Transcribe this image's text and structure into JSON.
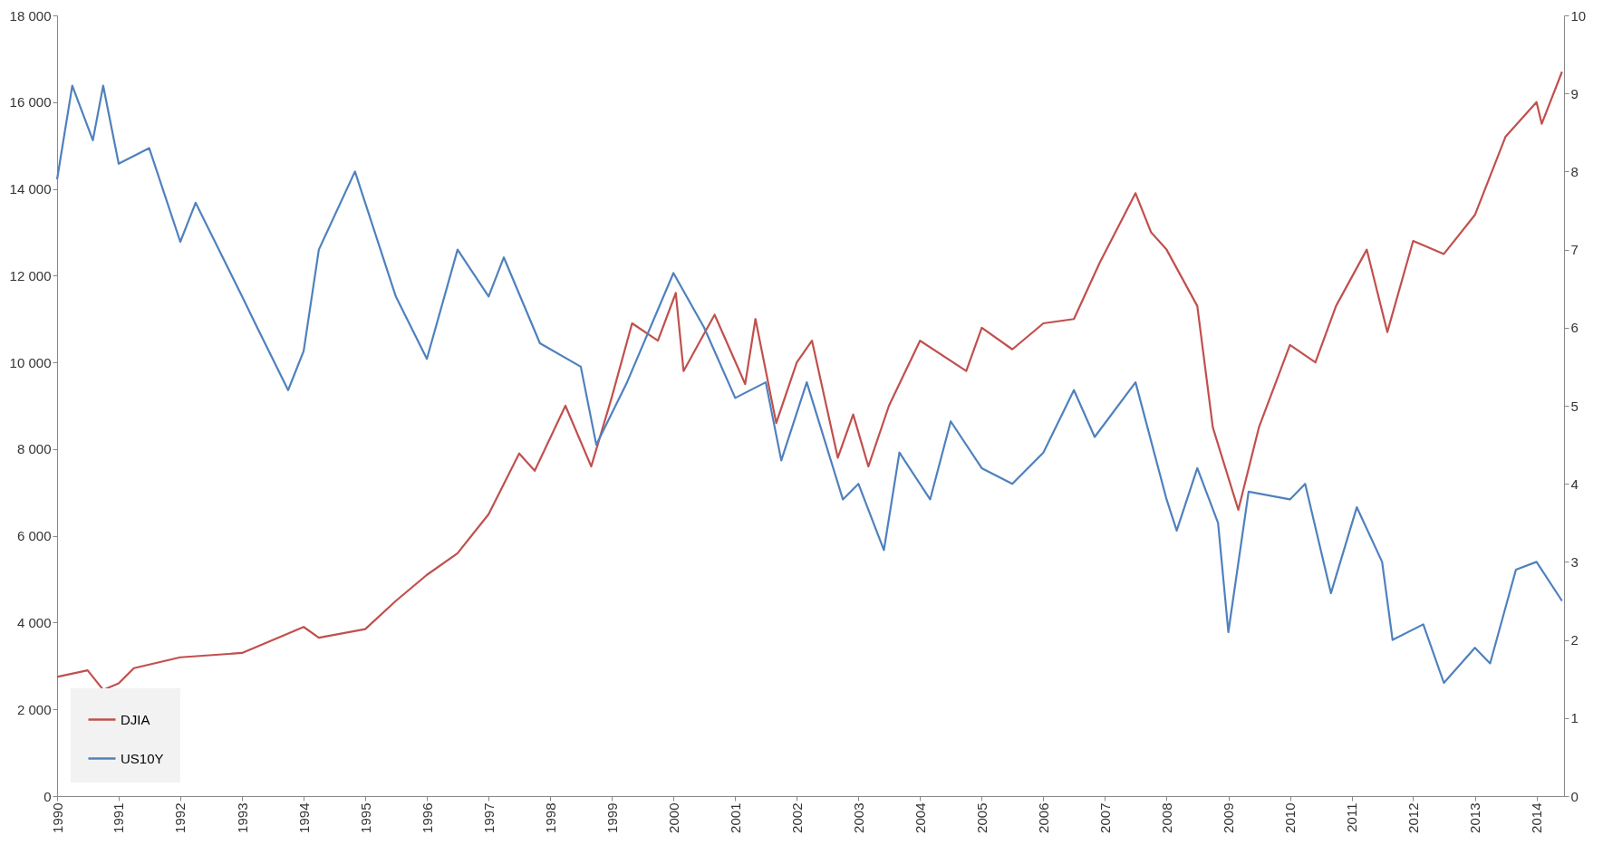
{
  "chart_data": {
    "type": "line",
    "legend": "bottom left",
    "grid": false,
    "xlim": [
      "1990-01-01",
      "2014-06-13"
    ],
    "xticks": [
      "1990",
      "1991",
      "1992",
      "1993",
      "1994",
      "1995",
      "1996",
      "1997",
      "1998",
      "1999",
      "2000",
      "2001",
      "2002",
      "2003",
      "2004",
      "2005",
      "2006",
      "2007",
      "2008",
      "2009",
      "2010",
      "2011",
      "2012",
      "2013",
      "2014"
    ],
    "ylim": [
      0,
      18000
    ],
    "yticks": [
      0,
      {
        "value": 2000,
        "label": "2 000"
      },
      {
        "value": 4000,
        "label": "4 000"
      },
      {
        "value": 6000,
        "label": "6 000"
      },
      {
        "value": 8000,
        "label": "8 000"
      },
      {
        "value": 10000,
        "label": "10 000"
      },
      {
        "value": 12000,
        "label": "12 000"
      },
      {
        "value": 14000,
        "label": "14 000"
      },
      {
        "value": 16000,
        "label": "16 000"
      },
      {
        "value": 18000,
        "label": "18 000"
      }
    ],
    "y2lim": [
      0,
      10
    ],
    "y2ticks": [
      0,
      1,
      2,
      3,
      4,
      5,
      6,
      7,
      8,
      9,
      10
    ],
    "series": [
      {
        "name": "DJIA",
        "color": "#c0504d",
        "x": [
          "1990-01",
          "1990-07",
          "1990-10",
          "1991-01",
          "1991-04",
          "1992-01",
          "1993-01",
          "1994-01",
          "1994-04",
          "1995-01",
          "1995-07",
          "1996-01",
          "1996-07",
          "1997-01",
          "1997-07",
          "1997-10",
          "1998-04",
          "1998-09",
          "1999-01",
          "1999-05",
          "1999-10",
          "2000-01-15",
          "2000-03",
          "2000-09",
          "2001-03",
          "2001-05",
          "2001-09",
          "2002-01",
          "2002-04",
          "2002-09",
          "2002-12",
          "2003-03",
          "2003-07",
          "2004-01",
          "2004-10",
          "2005-01",
          "2005-07",
          "2006-01",
          "2006-07",
          "2006-12",
          "2007-07",
          "2007-10",
          "2008-01",
          "2008-07",
          "2008-10",
          "2009-03",
          "2009-07",
          "2010-01",
          "2010-06",
          "2010-10",
          "2011-04",
          "2011-08",
          "2012-01",
          "2012-07",
          "2013-01",
          "2013-07",
          "2014-01",
          "2014-02",
          "2014-06"
        ],
        "values": [
          2750,
          2900,
          2450,
          2600,
          2950,
          3200,
          3300,
          3900,
          3650,
          3850,
          4500,
          5100,
          5600,
          6500,
          7900,
          7500,
          9000,
          7600,
          9200,
          10900,
          10500,
          11600,
          9800,
          11100,
          9500,
          11000,
          8600,
          10000,
          10500,
          7800,
          8800,
          7600,
          9000,
          10500,
          9800,
          10800,
          10300,
          10900,
          11000,
          12300,
          13900,
          13000,
          12600,
          11300,
          8500,
          6600,
          8500,
          10400,
          10000,
          11300,
          12600,
          10700,
          12800,
          12500,
          13400,
          15200,
          16000,
          15500,
          16700
        ]
      },
      {
        "name": "US10Y",
        "color": "#4f81bd",
        "axis": "y2",
        "x": [
          "1990-01",
          "1990-04",
          "1990-08",
          "1990-10",
          "1991-01",
          "1991-07",
          "1992-01",
          "1992-04",
          "1993-01",
          "1993-04",
          "1993-10",
          "1994-01",
          "1994-04",
          "1994-11",
          "1995-07",
          "1996-01",
          "1996-07",
          "1997-01",
          "1997-04",
          "1997-11",
          "1998-07",
          "1998-10",
          "1999-04",
          "2000-01",
          "2000-07",
          "2001-01",
          "2001-07",
          "2001-10",
          "2002-03",
          "2002-10",
          "2003-01",
          "2003-06",
          "2003-09",
          "2004-03",
          "2004-07",
          "2005-01",
          "2005-07",
          "2006-01",
          "2006-07",
          "2006-11",
          "2007-07",
          "2008-01",
          "2008-03",
          "2008-07",
          "2008-11",
          "2009-01",
          "2009-05",
          "2010-01",
          "2010-04",
          "2010-09",
          "2011-02",
          "2011-07",
          "2011-09",
          "2012-03",
          "2012-07",
          "2013-01",
          "2013-04",
          "2013-09",
          "2014-01",
          "2014-06"
        ],
        "values": [
          7.9,
          9.1,
          8.4,
          9.1,
          8.1,
          8.3,
          7.1,
          7.6,
          6.4,
          6.0,
          5.2,
          5.7,
          7.0,
          8.0,
          6.4,
          5.6,
          7.0,
          6.4,
          6.9,
          5.8,
          5.5,
          4.5,
          5.3,
          6.7,
          6.0,
          5.1,
          5.3,
          4.3,
          5.3,
          3.8,
          4.0,
          3.15,
          4.4,
          3.8,
          4.8,
          4.2,
          4.0,
          4.4,
          5.2,
          4.6,
          5.3,
          3.8,
          3.4,
          4.2,
          3.5,
          2.1,
          3.9,
          3.8,
          4.0,
          2.6,
          3.7,
          3.0,
          2.0,
          2.2,
          1.45,
          1.9,
          1.7,
          2.9,
          3.0,
          2.5
        ]
      }
    ]
  }
}
